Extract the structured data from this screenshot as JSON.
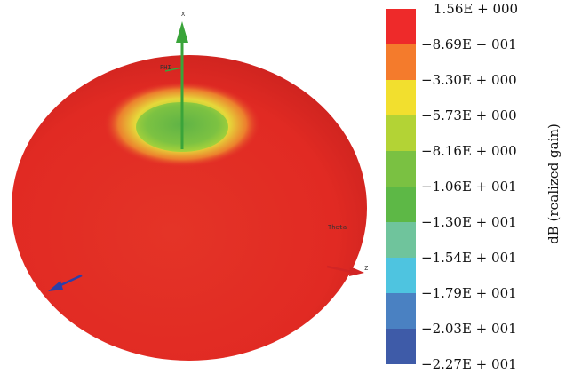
{
  "figure": {
    "axes": {
      "x_label": "X",
      "y_label": "PHI",
      "z_label": "Z",
      "theta_label": "Theta"
    }
  },
  "legend": {
    "title": "dB (realized gain)",
    "ticks": [
      "1.56E + 000",
      "−8.69E − 001",
      "−3.30E + 000",
      "−5.73E + 000",
      "−8.16E + 000",
      "−1.06E + 001",
      "−1.30E + 001",
      "−1.54E + 001",
      "−1.79E + 001",
      "−2.03E + 001",
      "−2.27E + 001"
    ],
    "colors": [
      "#ee2a2a",
      "#f47b2c",
      "#f2df2e",
      "#b3d335",
      "#7ac142",
      "#5db846",
      "#6fc49c",
      "#4ec4e0",
      "#4a81c2",
      "#3e5ba8"
    ]
  }
}
